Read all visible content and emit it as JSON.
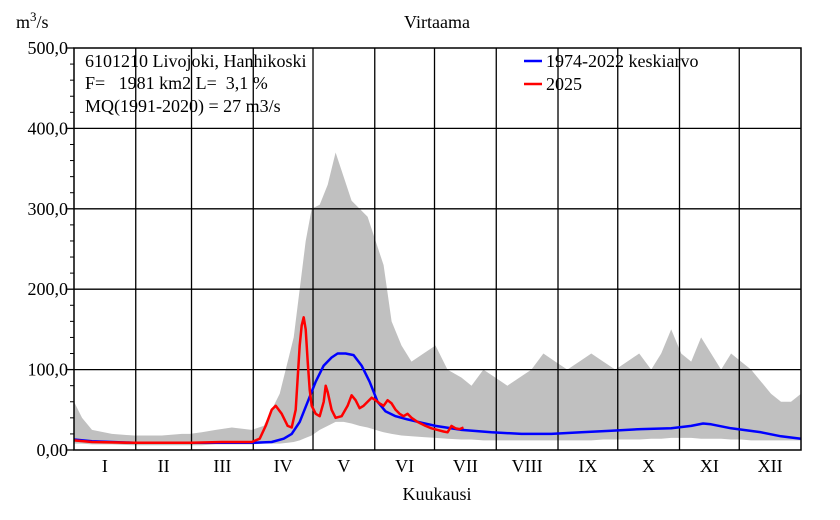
{
  "chart_data": {
    "type": "line",
    "title": "Virtaama",
    "ylabel_base": "m",
    "ylabel_sup": "3",
    "ylabel_rest": "/s",
    "xlabel": "Kuukausi",
    "ylim": [
      0,
      500
    ],
    "y_ticks": [
      0,
      100,
      200,
      300,
      400,
      500
    ],
    "y_tick_labels": [
      "0,00",
      "100,0",
      "200,0",
      "300,0",
      "400,0",
      "500,0"
    ],
    "months": [
      "I",
      "II",
      "III",
      "IV",
      "V",
      "VI",
      "VII",
      "VIII",
      "IX",
      "X",
      "XI",
      "XII"
    ],
    "info_lines": [
      "6101210 Livojoki, Hanhikoski",
      "F=   1981 km2 L=  3,1 %",
      "MQ(1991-2020) = 27 m3/s"
    ],
    "legend": [
      {
        "label": "1974-2022 keskiarvo",
        "color": "#0000ff"
      },
      {
        "label": "2025",
        "color": "#ff0000"
      }
    ],
    "series": [
      {
        "name": "1974-2022 keskiarvo",
        "color": "#0000ff",
        "points": [
          [
            1,
            13
          ],
          [
            10,
            11
          ],
          [
            20,
            10
          ],
          [
            31,
            9
          ],
          [
            45,
            9
          ],
          [
            59,
            9
          ],
          [
            75,
            9
          ],
          [
            90,
            9
          ],
          [
            100,
            10
          ],
          [
            106,
            14
          ],
          [
            110,
            20
          ],
          [
            114,
            35
          ],
          [
            118,
            60
          ],
          [
            122,
            85
          ],
          [
            126,
            105
          ],
          [
            130,
            115
          ],
          [
            133,
            120
          ],
          [
            137,
            120
          ],
          [
            141,
            118
          ],
          [
            145,
            105
          ],
          [
            149,
            85
          ],
          [
            153,
            60
          ],
          [
            157,
            48
          ],
          [
            162,
            42
          ],
          [
            168,
            38
          ],
          [
            175,
            34
          ],
          [
            182,
            30
          ],
          [
            195,
            25
          ],
          [
            210,
            22
          ],
          [
            225,
            20
          ],
          [
            240,
            20
          ],
          [
            255,
            22
          ],
          [
            270,
            24
          ],
          [
            285,
            26
          ],
          [
            300,
            27
          ],
          [
            310,
            30
          ],
          [
            316,
            33
          ],
          [
            320,
            32
          ],
          [
            330,
            27
          ],
          [
            345,
            22
          ],
          [
            355,
            17
          ],
          [
            365,
            14
          ]
        ]
      },
      {
        "name": "2025",
        "color": "#ff0000",
        "points": [
          [
            1,
            12
          ],
          [
            10,
            10
          ],
          [
            31,
            9
          ],
          [
            60,
            9
          ],
          [
            75,
            10
          ],
          [
            90,
            10
          ],
          [
            94,
            14
          ],
          [
            97,
            30
          ],
          [
            100,
            50
          ],
          [
            102,
            55
          ],
          [
            105,
            45
          ],
          [
            108,
            30
          ],
          [
            110,
            28
          ],
          [
            112,
            50
          ],
          [
            113,
            90
          ],
          [
            114,
            130
          ],
          [
            115,
            155
          ],
          [
            116,
            165
          ],
          [
            117,
            150
          ],
          [
            118,
            110
          ],
          [
            119,
            75
          ],
          [
            120,
            55
          ],
          [
            122,
            45
          ],
          [
            124,
            42
          ],
          [
            126,
            60
          ],
          [
            127,
            80
          ],
          [
            128,
            72
          ],
          [
            130,
            50
          ],
          [
            132,
            40
          ],
          [
            135,
            42
          ],
          [
            138,
            55
          ],
          [
            140,
            68
          ],
          [
            142,
            62
          ],
          [
            144,
            52
          ],
          [
            146,
            55
          ],
          [
            148,
            60
          ],
          [
            150,
            65
          ],
          [
            152,
            62
          ],
          [
            154,
            58
          ],
          [
            156,
            55
          ],
          [
            158,
            62
          ],
          [
            160,
            58
          ],
          [
            162,
            50
          ],
          [
            164,
            45
          ],
          [
            166,
            42
          ],
          [
            168,
            45
          ],
          [
            170,
            40
          ],
          [
            173,
            35
          ],
          [
            177,
            30
          ],
          [
            180,
            27
          ],
          [
            183,
            25
          ],
          [
            186,
            23
          ],
          [
            188,
            22
          ],
          [
            190,
            30
          ],
          [
            192,
            27
          ],
          [
            194,
            26
          ],
          [
            196,
            28
          ]
        ]
      }
    ],
    "range_band": {
      "name": "min-max",
      "color": "#c0c0c0",
      "points": [
        [
          1,
          8,
          60
        ],
        [
          5,
          8,
          40
        ],
        [
          10,
          7,
          25
        ],
        [
          20,
          7,
          20
        ],
        [
          31,
          6,
          18
        ],
        [
          45,
          6,
          18
        ],
        [
          55,
          6,
          20
        ],
        [
          59,
          6,
          20
        ],
        [
          65,
          6,
          22
        ],
        [
          72,
          7,
          25
        ],
        [
          80,
          7,
          28
        ],
        [
          90,
          7,
          25
        ],
        [
          96,
          8,
          30
        ],
        [
          100,
          8,
          50
        ],
        [
          104,
          8,
          70
        ],
        [
          108,
          9,
          110
        ],
        [
          111,
          10,
          140
        ],
        [
          114,
          12,
          200
        ],
        [
          117,
          15,
          260
        ],
        [
          120,
          18,
          300
        ],
        [
          124,
          25,
          305
        ],
        [
          128,
          30,
          330
        ],
        [
          132,
          35,
          370
        ],
        [
          136,
          35,
          340
        ],
        [
          140,
          33,
          310
        ],
        [
          144,
          30,
          300
        ],
        [
          148,
          28,
          290
        ],
        [
          152,
          25,
          260
        ],
        [
          156,
          22,
          230
        ],
        [
          160,
          20,
          160
        ],
        [
          165,
          18,
          130
        ],
        [
          170,
          17,
          110
        ],
        [
          176,
          16,
          120
        ],
        [
          182,
          15,
          130
        ],
        [
          188,
          14,
          100
        ],
        [
          195,
          13,
          90
        ],
        [
          200,
          13,
          80
        ],
        [
          206,
          12,
          100
        ],
        [
          212,
          12,
          90
        ],
        [
          218,
          12,
          80
        ],
        [
          224,
          12,
          90
        ],
        [
          230,
          12,
          100
        ],
        [
          236,
          12,
          120
        ],
        [
          242,
          12,
          110
        ],
        [
          248,
          12,
          100
        ],
        [
          254,
          12,
          110
        ],
        [
          260,
          12,
          120
        ],
        [
          266,
          13,
          110
        ],
        [
          272,
          13,
          100
        ],
        [
          278,
          13,
          110
        ],
        [
          284,
          13,
          120
        ],
        [
          290,
          14,
          100
        ],
        [
          295,
          14,
          120
        ],
        [
          300,
          15,
          150
        ],
        [
          305,
          15,
          120
        ],
        [
          310,
          15,
          110
        ],
        [
          315,
          14,
          140
        ],
        [
          320,
          14,
          120
        ],
        [
          325,
          14,
          100
        ],
        [
          330,
          13,
          120
        ],
        [
          335,
          13,
          110
        ],
        [
          340,
          12,
          100
        ],
        [
          345,
          12,
          85
        ],
        [
          350,
          12,
          70
        ],
        [
          355,
          12,
          60
        ],
        [
          360,
          12,
          60
        ],
        [
          365,
          12,
          70
        ]
      ]
    }
  }
}
